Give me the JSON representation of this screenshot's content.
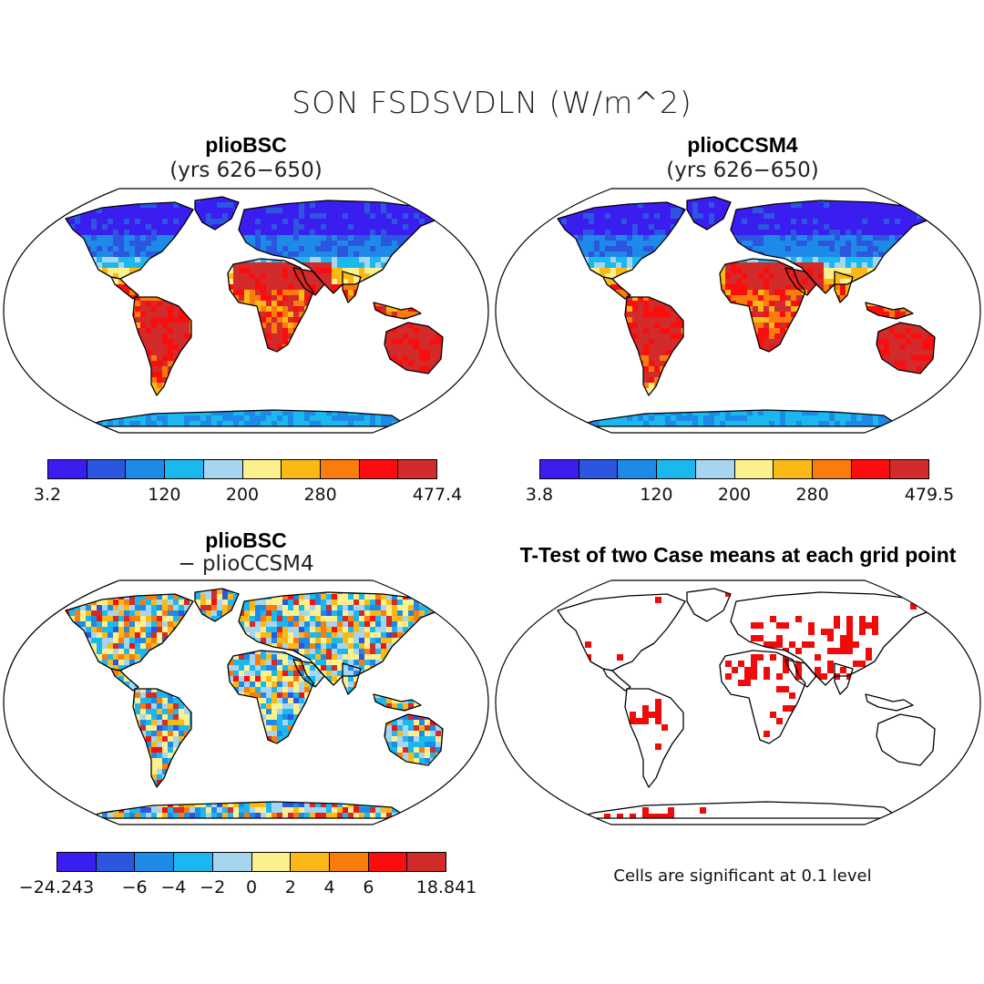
{
  "title": "SON FSDSVDLN (W/m^2)",
  "panels": {
    "tl": {
      "title": "plioBSC",
      "subtitle": "(yrs 626−650)"
    },
    "tr": {
      "title": "plioCCSM4",
      "subtitle": "(yrs 626−650)"
    },
    "bl": {
      "title": "plioBSC",
      "subtitle": "− plioCCSM4"
    },
    "br": {
      "title": "T-Test of two Case means at each grid point",
      "note": "Cells are significant at 0.1 level"
    }
  },
  "colorbars": {
    "tl": {
      "colors": [
        "#3a1ef0",
        "#2c56e0",
        "#1e8ae8",
        "#1ab8ee",
        "#a6d5ef",
        "#fcf08e",
        "#fbb918",
        "#f97c0c",
        "#fb0d0d",
        "#d12b2b"
      ],
      "labels": [
        "3.2",
        "120",
        "200",
        "280",
        "477.4"
      ]
    },
    "tr": {
      "colors": [
        "#3a1ef0",
        "#2c56e0",
        "#1e8ae8",
        "#1ab8ee",
        "#a6d5ef",
        "#fcf08e",
        "#fbb918",
        "#f97c0c",
        "#fb0d0d",
        "#d12b2b"
      ],
      "labels": [
        "3.8",
        "120",
        "200",
        "280",
        "479.5"
      ]
    },
    "bl": {
      "colors": [
        "#3a1ef0",
        "#2c56e0",
        "#1e8ae8",
        "#1ab8ee",
        "#a6d5ef",
        "#fcf08e",
        "#fbb918",
        "#f97c0c",
        "#fb0d0d",
        "#d12b2b"
      ],
      "labels": [
        "−24.243",
        "−6",
        "−4",
        "−2",
        "0",
        "2",
        "4",
        "6",
        "18.841"
      ]
    }
  },
  "colors": {
    "significant": "#f00a0a",
    "ocean": "#ffffff",
    "coast": "#000000"
  }
}
